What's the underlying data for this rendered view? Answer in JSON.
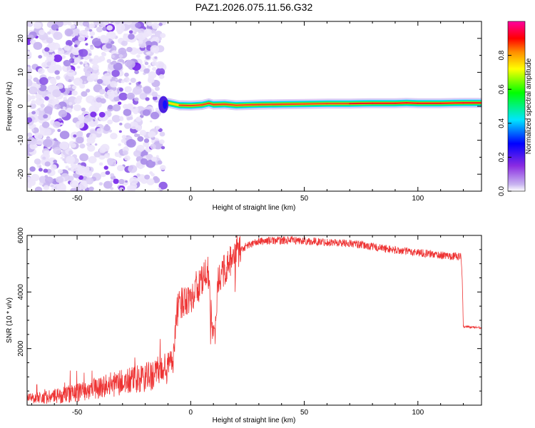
{
  "title": "PAZ1.2026.075.11.56.G32",
  "chart_data": [
    {
      "type": "heatmap",
      "name": "spectrogram",
      "xlabel": "Height of straight line (km)",
      "ylabel": "Frequency (Hz)",
      "xlim": [
        -72,
        128
      ],
      "ylim": [
        -25,
        25
      ],
      "xticks": [
        -50,
        0,
        50,
        100
      ],
      "yticks": [
        -20,
        -10,
        0,
        10,
        20
      ],
      "noise_region": [
        -72,
        -14
      ],
      "signal_track": {
        "x": [
          -14,
          -10,
          -5,
          0,
          5,
          8,
          10,
          15,
          20,
          30,
          40,
          50,
          60,
          70,
          80,
          90,
          95,
          100,
          110,
          120,
          128
        ],
        "freq": [
          0.5,
          1.0,
          0.3,
          0.2,
          0.4,
          0.9,
          0.5,
          0.6,
          0.3,
          0.5,
          0.6,
          0.7,
          0.8,
          0.8,
          0.9,
          0.9,
          1.0,
          0.9,
          0.9,
          1.0,
          1.0
        ]
      },
      "colorbar": {
        "label": "Normalized spectral amplitude",
        "range": [
          0,
          1
        ],
        "ticks": [
          "0.0",
          "0.2",
          "0.4",
          "0.6",
          "0.8"
        ],
        "colors": [
          "#ffffff",
          "#8a2be2",
          "#0000ff",
          "#00e5ff",
          "#00ff00",
          "#ffff00",
          "#ff8c00",
          "#ff0000",
          "#ff00a0"
        ]
      }
    },
    {
      "type": "line",
      "name": "snr",
      "xlabel": "Height of straight line (km)",
      "ylabel": "SNR (10 * v/v)",
      "xlim": [
        -72,
        128
      ],
      "ylim": [
        0,
        6000
      ],
      "xticks": [
        -50,
        0,
        50,
        100
      ],
      "yticks": [
        2000,
        4000,
        6000
      ],
      "color": "#ee3333",
      "series": [
        {
          "name": "SNR",
          "x": [
            -72,
            -60,
            -50,
            -40,
            -30,
            -20,
            -15,
            -10,
            -8,
            -6,
            -4,
            -2,
            0,
            2,
            4,
            6,
            8,
            9,
            10,
            11,
            12,
            14,
            16,
            18,
            20,
            25,
            30,
            35,
            40,
            45,
            50,
            55,
            60,
            70,
            80,
            90,
            100,
            110,
            119,
            119.5,
            120,
            128
          ],
          "y": [
            250,
            300,
            450,
            650,
            800,
            950,
            1150,
            1300,
            1700,
            3300,
            3600,
            3800,
            3800,
            4100,
            4300,
            4500,
            4700,
            3200,
            2300,
            2700,
            4300,
            4700,
            4900,
            5100,
            5400,
            5650,
            5780,
            5820,
            5820,
            5830,
            5800,
            5780,
            5760,
            5720,
            5600,
            5480,
            5400,
            5300,
            5250,
            4500,
            2780,
            2740
          ]
        }
      ]
    }
  ]
}
